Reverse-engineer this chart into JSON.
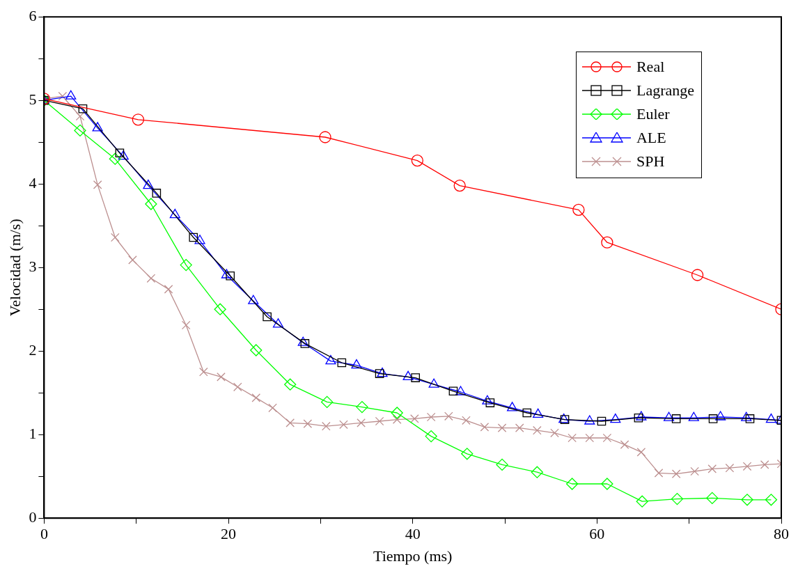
{
  "chart_data": {
    "type": "line",
    "xlabel": "Tiempo (ms)",
    "ylabel": "Velocidad (m/s)",
    "xlim": [
      0,
      80
    ],
    "ylim": [
      0,
      6
    ],
    "xticks": [
      0,
      {
        "value": 10,
        "label": null
      },
      20,
      {
        "value": 30,
        "label": null
      },
      40,
      {
        "value": 50,
        "label": null
      },
      60,
      {
        "value": 70,
        "label": null
      },
      80
    ],
    "yticks": [
      0,
      {
        "value": 0.5,
        "label": null
      },
      1,
      {
        "value": 1.5,
        "label": null
      },
      2,
      {
        "value": 2.5,
        "label": null
      },
      3,
      {
        "value": 3.5,
        "label": null
      },
      4,
      {
        "value": 4.5,
        "label": null
      },
      5,
      {
        "value": 5.5,
        "label": null
      },
      6
    ],
    "grid": false,
    "legend": "top right",
    "line_style": "solid",
    "series": [
      {
        "name": "Real",
        "color": "#ff0000",
        "marker": "circle",
        "x": [
          0,
          10.2,
          30.5,
          40.5,
          45.1,
          58.0,
          61.1,
          70.9,
          80
        ],
        "values": [
          5.02,
          4.77,
          4.56,
          4.28,
          3.98,
          3.69,
          3.3,
          2.91,
          2.5
        ]
      },
      {
        "name": "Lagrange",
        "color": "#000000",
        "marker": "square",
        "x": [
          0,
          4.2,
          8.2,
          12.2,
          16.2,
          20.2,
          24.2,
          28.3,
          32.3,
          36.4,
          40.3,
          44.4,
          48.4,
          52.4,
          56.5,
          60.5,
          64.5,
          68.6,
          72.6,
          76.6,
          80
        ],
        "values": [
          5.0,
          4.9,
          4.37,
          3.89,
          3.36,
          2.9,
          2.41,
          2.09,
          1.86,
          1.73,
          1.68,
          1.52,
          1.38,
          1.26,
          1.18,
          1.16,
          1.2,
          1.19,
          1.19,
          1.19,
          1.17
        ]
      },
      {
        "name": "Euler",
        "color": "#00ff00",
        "marker": "diamond",
        "x": [
          0,
          3.9,
          7.7,
          11.6,
          15.4,
          19.1,
          23.0,
          26.7,
          30.7,
          34.5,
          38.3,
          42.0,
          45.9,
          49.7,
          53.5,
          57.3,
          61.1,
          64.9,
          68.7,
          72.5,
          76.3,
          78.9
        ],
        "values": [
          5.0,
          4.64,
          4.3,
          3.76,
          3.03,
          2.5,
          2.01,
          1.6,
          1.39,
          1.33,
          1.26,
          0.98,
          0.77,
          0.64,
          0.55,
          0.41,
          0.41,
          0.2,
          0.23,
          0.24,
          0.22,
          0.22
        ]
      },
      {
        "name": "ALE",
        "color": "#0000ff",
        "marker": "triangle",
        "x": [
          0,
          2.9,
          5.8,
          8.6,
          11.3,
          14.2,
          16.9,
          19.8,
          22.7,
          25.4,
          28.1,
          31.1,
          33.9,
          36.7,
          39.5,
          42.3,
          45.2,
          48.1,
          50.8,
          53.6,
          56.4,
          59.2,
          62.0,
          64.8,
          67.8,
          70.5,
          73.4,
          76.2,
          78.9,
          80
        ],
        "values": [
          5.0,
          5.05,
          4.67,
          4.33,
          3.98,
          3.63,
          3.32,
          2.91,
          2.6,
          2.32,
          2.1,
          1.88,
          1.83,
          1.73,
          1.69,
          1.6,
          1.51,
          1.4,
          1.32,
          1.24,
          1.18,
          1.16,
          1.18,
          1.21,
          1.2,
          1.2,
          1.21,
          1.2,
          1.18,
          1.17
        ]
      },
      {
        "name": "SPH",
        "color": "#bc8f8f",
        "marker": "cross",
        "x": [
          0,
          2,
          3.9,
          5.8,
          7.7,
          9.6,
          11.6,
          13.5,
          15.4,
          17.3,
          19.2,
          21.0,
          23.0,
          24.8,
          26.7,
          28.6,
          30.6,
          32.5,
          34.4,
          36.4,
          38.3,
          40.2,
          42.0,
          43.9,
          45.8,
          47.8,
          49.7,
          51.6,
          53.5,
          55.4,
          57.3,
          59.2,
          61.1,
          63.0,
          64.8,
          66.7,
          68.6,
          70.6,
          72.5,
          74.4,
          76.3,
          78.2,
          80
        ],
        "values": [
          5.02,
          5.05,
          4.81,
          3.99,
          3.36,
          3.09,
          2.87,
          2.74,
          2.31,
          1.75,
          1.69,
          1.57,
          1.44,
          1.32,
          1.14,
          1.13,
          1.1,
          1.12,
          1.14,
          1.16,
          1.18,
          1.19,
          1.21,
          1.22,
          1.17,
          1.09,
          1.08,
          1.08,
          1.05,
          1.02,
          0.96,
          0.96,
          0.96,
          0.88,
          0.79,
          0.54,
          0.53,
          0.56,
          0.59,
          0.6,
          0.62,
          0.64,
          0.65
        ]
      }
    ]
  }
}
